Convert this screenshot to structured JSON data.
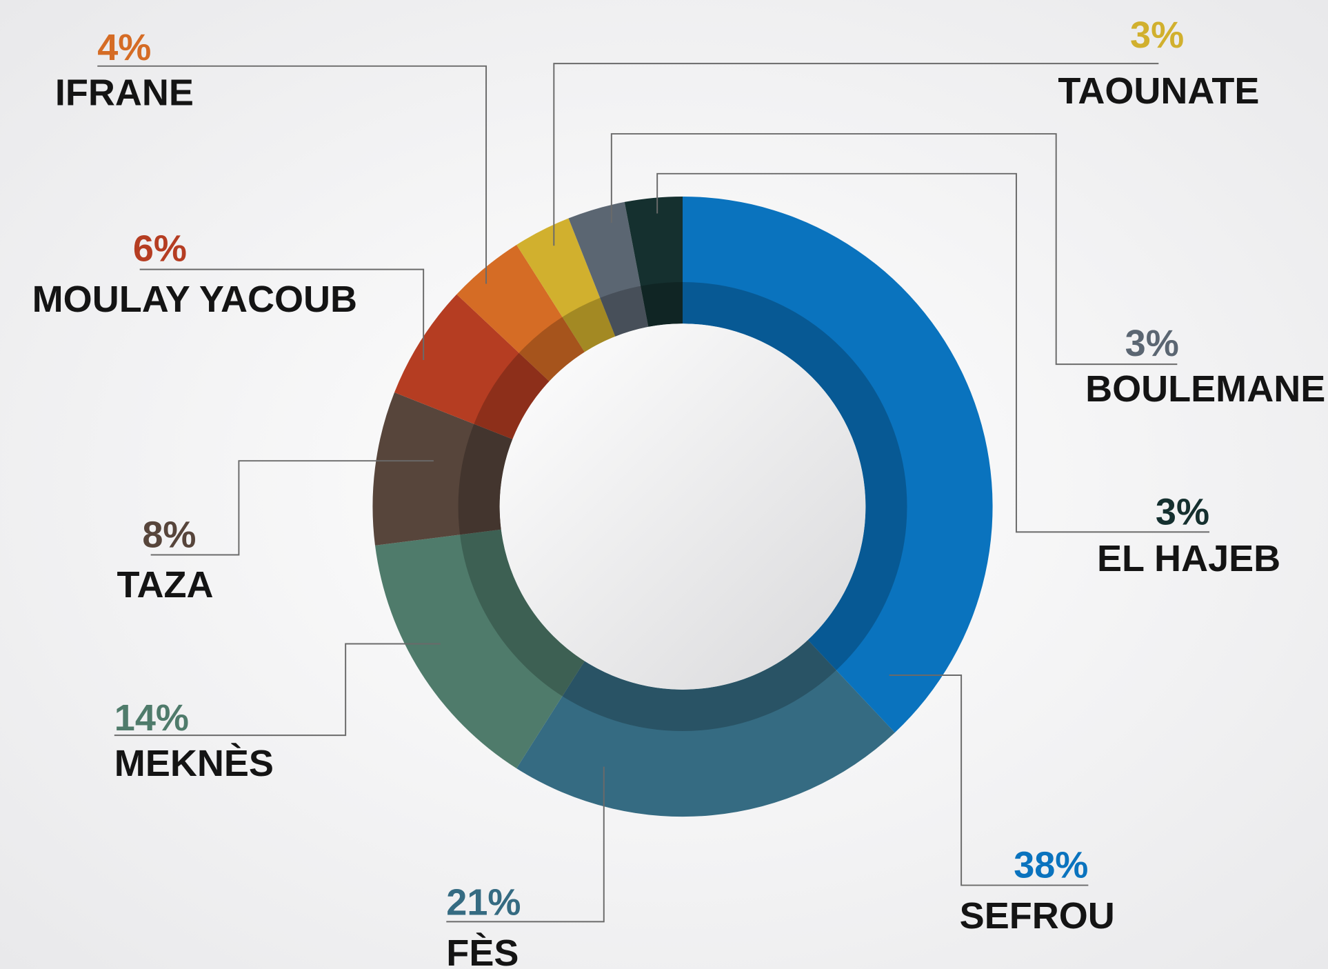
{
  "chart_data": {
    "type": "donut",
    "categories": [
      "SEFROU",
      "FÈS",
      "MEKNÈS",
      "TAZA",
      "MOULAY YACOUB",
      "IFRANE",
      "TAOUNATE",
      "BOULEMANE",
      "EL HAJEB"
    ],
    "values": [
      38,
      21,
      14,
      8,
      6,
      4,
      3,
      3,
      3
    ],
    "value_labels": [
      "38%",
      "21%",
      "14%",
      "8%",
      "6%",
      "4%",
      "3%",
      "3%",
      "3%"
    ],
    "colors": [
      "#0a73be",
      "#356b82",
      "#4f7b6b",
      "#57453b",
      "#b53d22",
      "#d56c25",
      "#d1b02e",
      "#5b6672",
      "#15302f"
    ]
  }
}
